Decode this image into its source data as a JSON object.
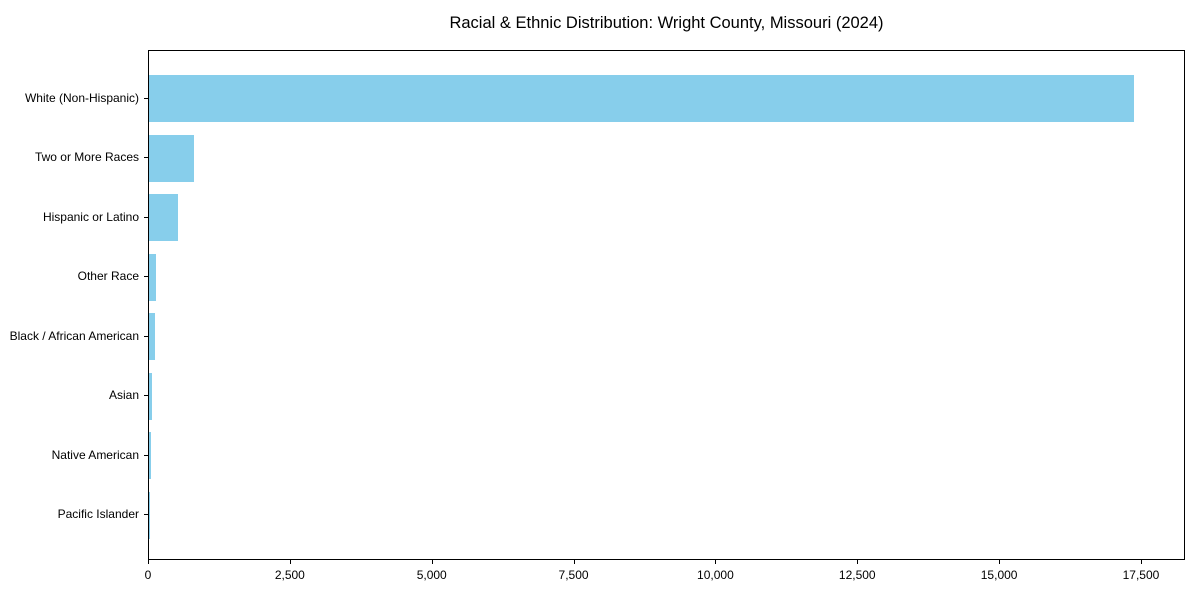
{
  "chart_data": {
    "type": "bar",
    "orientation": "horizontal",
    "title": "Racial & Ethnic Distribution: Wright County, Missouri (2024)",
    "categories": [
      "White (Non-Hispanic)",
      "Two or More Races",
      "Hispanic or Latino",
      "Other Race",
      "Black / African American",
      "Asian",
      "Native American",
      "Pacific Islander"
    ],
    "values": [
      17400,
      800,
      515,
      125,
      110,
      55,
      30,
      10
    ],
    "xlabel": "",
    "ylabel": "",
    "xlim": [
      0,
      18276
    ],
    "x_ticks": [
      0,
      2500,
      5000,
      7500,
      10000,
      12500,
      15000,
      17500
    ],
    "x_tick_labels": [
      "0",
      "2,500",
      "5,000",
      "7,500",
      "10,000",
      "12,500",
      "15,000",
      "17,500"
    ],
    "bar_color": "#87CEEB",
    "axis_color": "#000000",
    "background_color": "#ffffff",
    "grid": false,
    "legend": "none"
  }
}
